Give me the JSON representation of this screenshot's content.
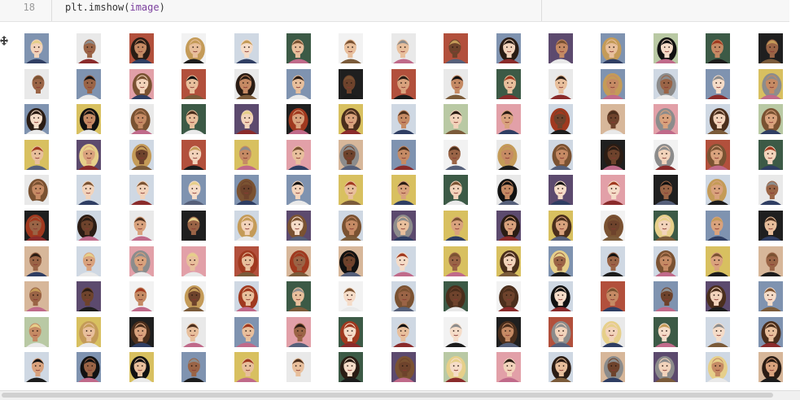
{
  "code_cell": {
    "line_number": "18",
    "code": {
      "func": "plt.imshow",
      "open": "(",
      "arg": "image",
      "close": ")"
    }
  },
  "output": {
    "icon": "expand-output-icon",
    "grid": {
      "rows": 10,
      "cols": 15
    },
    "palette": {
      "skin": [
        "#f2d3bb",
        "#e8bf9c",
        "#d9a27d",
        "#c58a64",
        "#9a6446",
        "#6e432c",
        "#f5dcc8"
      ],
      "hair": [
        "#2a1c14",
        "#4a2e1c",
        "#7a5232",
        "#c49b58",
        "#e6cf8a",
        "#a0391f",
        "#111111",
        "#8c8c8c"
      ],
      "bg": [
        "#e9e9e9",
        "#cfd8e3",
        "#1f1f1f",
        "#b9c9a4",
        "#d7b79a",
        "#7f93b0",
        "#f2f2f2",
        "#b2503c",
        "#3c5a46",
        "#d8c060",
        "#e2a0a8",
        "#5c4a6e"
      ],
      "clothes": [
        "#1c1c1c",
        "#2f3e63",
        "#8a2b2b",
        "#e9e9e9",
        "#56607a",
        "#7b5b3a",
        "#c06a8a"
      ]
    }
  }
}
